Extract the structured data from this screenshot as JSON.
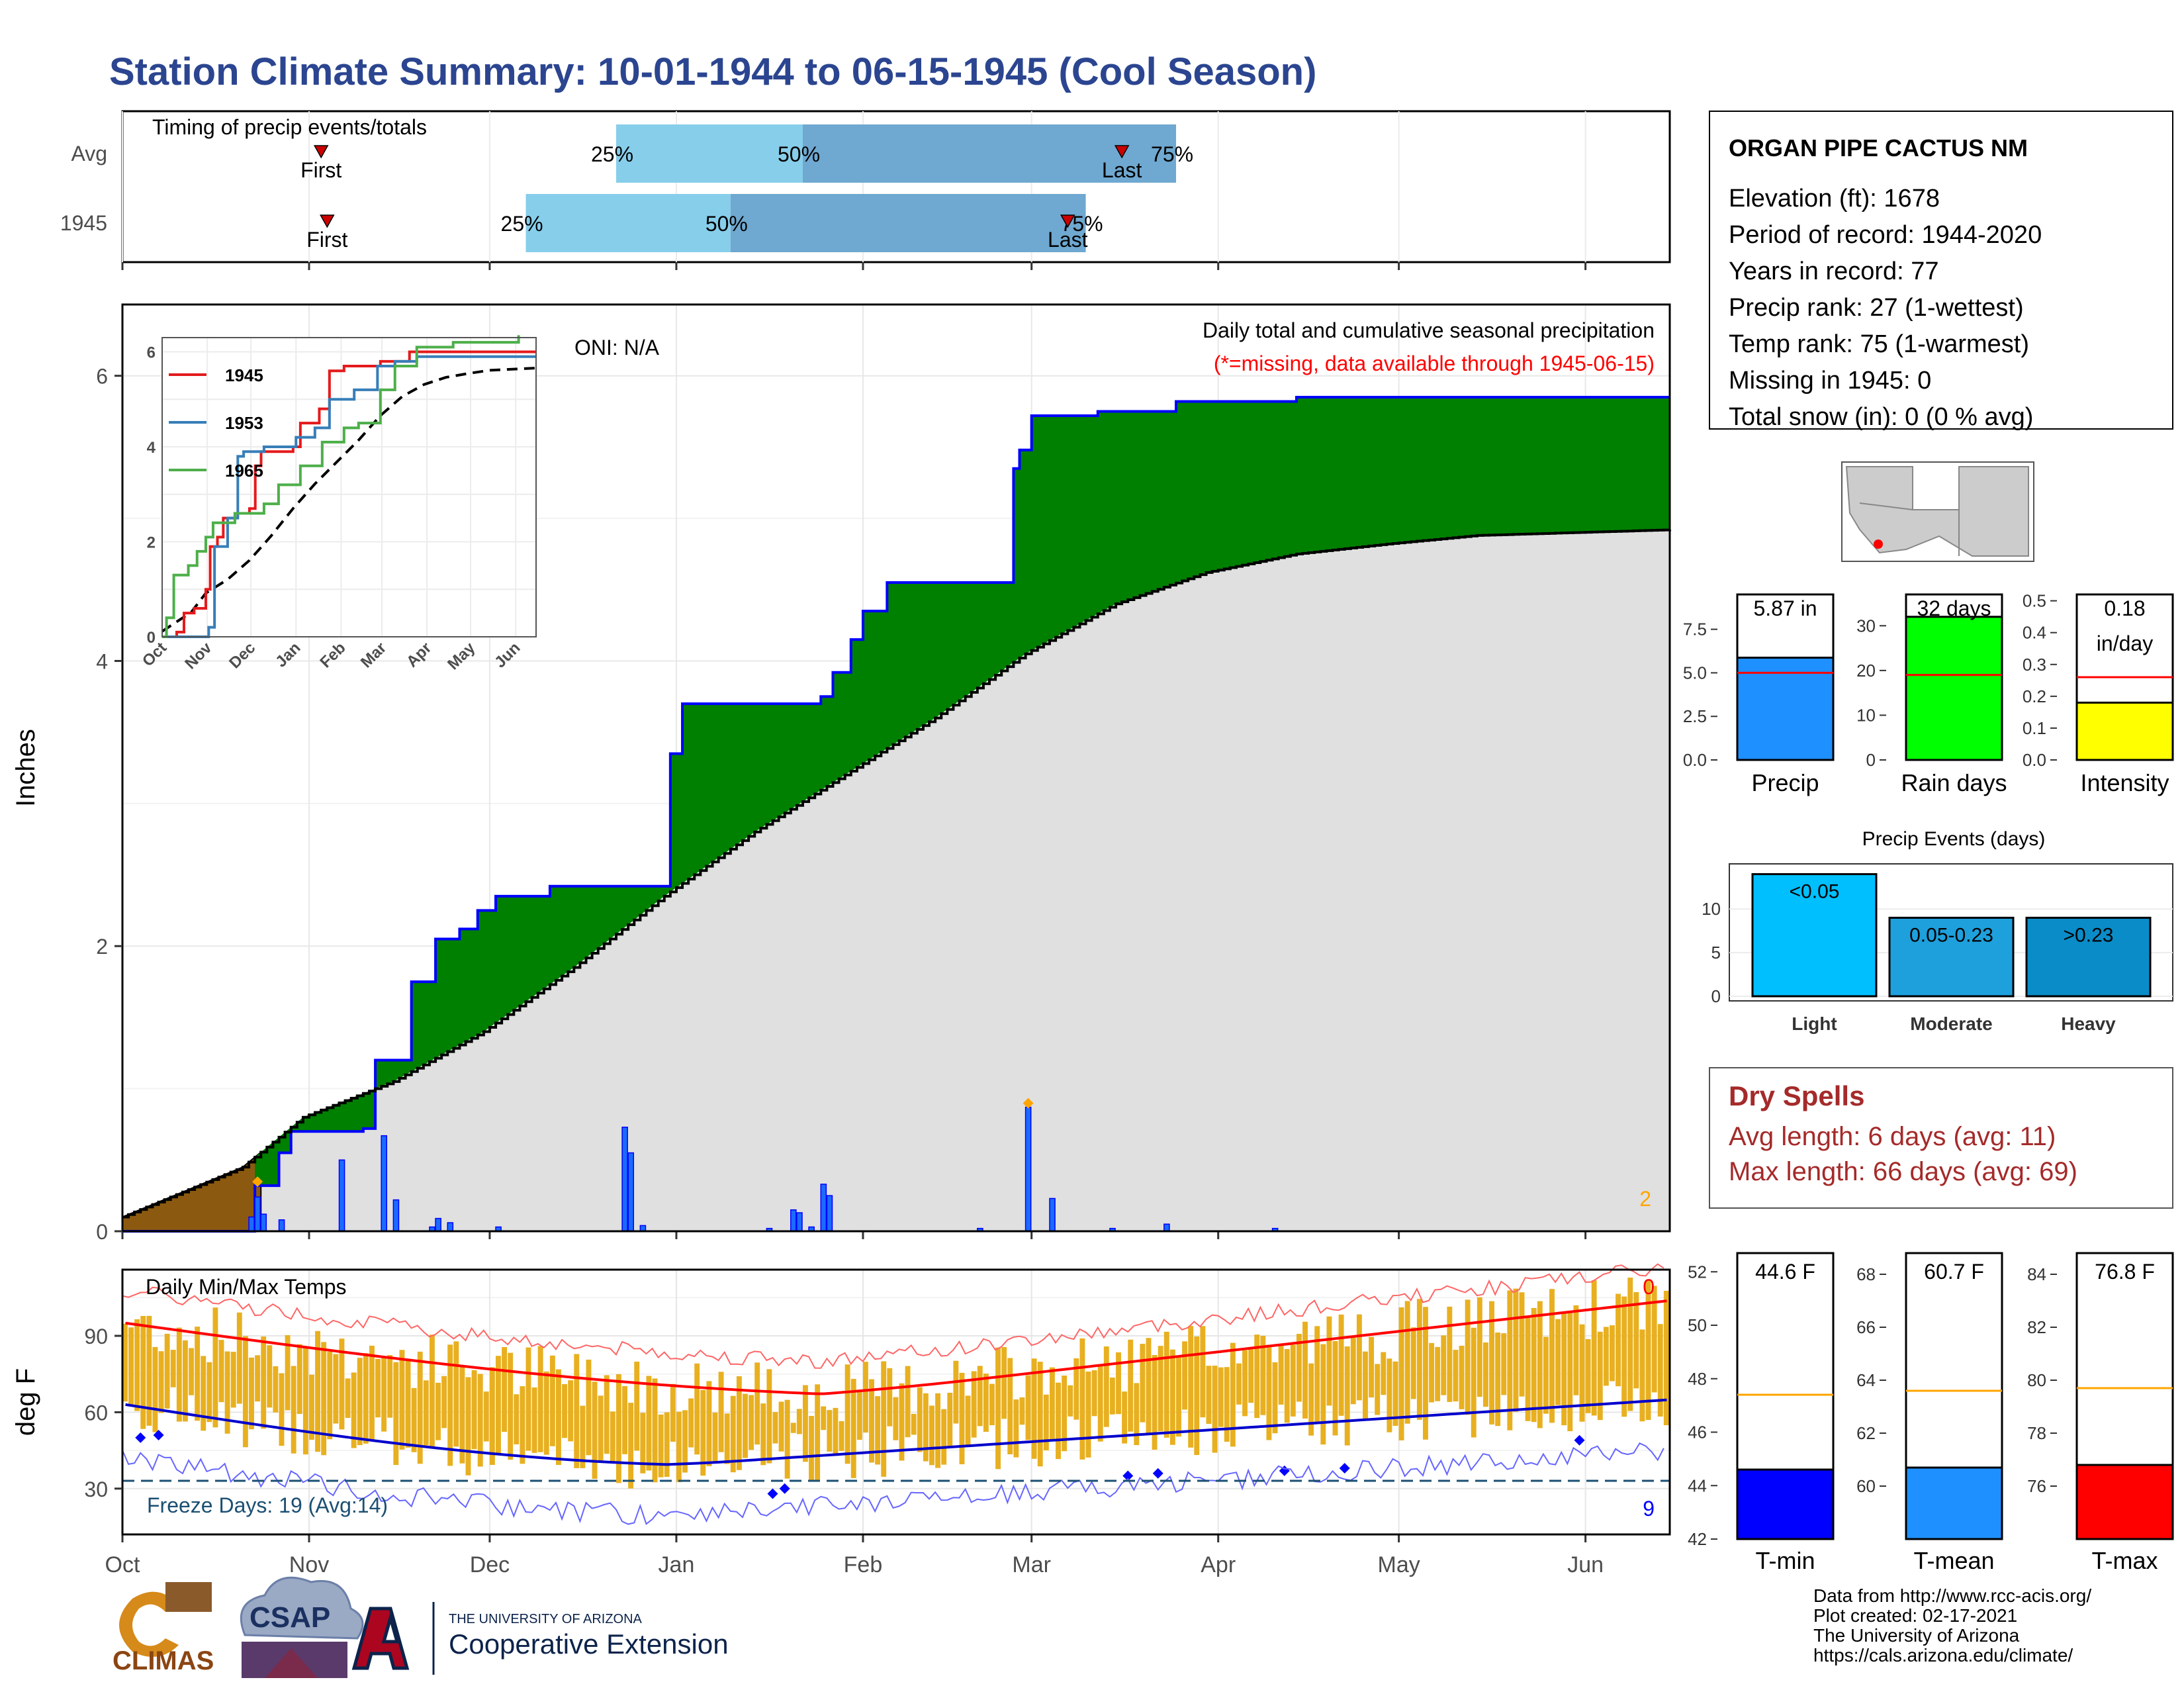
{
  "title": "Station Climate Summary: 10-01-1944 to 06-15-1945 (Cool Season)",
  "months": [
    "Oct",
    "Nov",
    "Dec",
    "Jan",
    "Feb",
    "Mar",
    "Apr",
    "May",
    "Jun"
  ],
  "colors": {
    "title": "#2b4590",
    "precip_fill": "#008000",
    "normal_fill": "#e0e0e0",
    "prev_fill": "#8b5a10",
    "bar": "#0033ff",
    "bar_fill": "#1a6bff",
    "tmax_line": "#ff0000",
    "tmin_line": "#0000cc",
    "temp_bar": "#e8b020",
    "freeze": "#1b4f72",
    "dry": "#a52a2a"
  },
  "timing": {
    "label": "Timing of precip events/totals",
    "rows": [
      {
        "name": "Avg",
        "first": "First",
        "last": "Last",
        "first_day": 33,
        "last_day": 166,
        "q25_day": 82,
        "q50_day": 113,
        "q75_day": 175,
        "q25": "25%",
        "q50": "50%",
        "q75": "75%"
      },
      {
        "name": "1945",
        "first": "First",
        "last": "Last",
        "first_day": 34,
        "last_day": 157,
        "q25_day": 67,
        "q50_day": 101,
        "q75_day": 160,
        "q25": "25%",
        "q50": "50%",
        "q75": "75%"
      }
    ]
  },
  "station": {
    "name": "ORGAN PIPE CACTUS NM",
    "lines": [
      "Elevation (ft): 1678",
      "Period of record: 1944-2020",
      "Years in record: 77",
      "Precip rank: 27 (1-wettest)",
      "Temp rank: 75 (1-warmest)",
      "Missing in 1945: 0",
      "Total snow (in): 0 (0 % avg)"
    ]
  },
  "precip_panel": {
    "ylabel": "Inches",
    "oni": "ONI: N/A",
    "caption": "Daily total and cumulative seasonal precipitation",
    "missing_note": "(*=missing, data available through 1945-06-15)",
    "missing_count": "2",
    "yticks": [
      "0",
      "2",
      "4",
      "6"
    ]
  },
  "inset": {
    "legend": [
      "1945",
      "1953",
      "1965"
    ],
    "series_colors": [
      "#e41a1c",
      "#377eb8",
      "#4daf4a"
    ],
    "yticks": [
      "0",
      "2",
      "4",
      "6"
    ],
    "months": [
      "Oct",
      "Nov",
      "Dec",
      "Jan",
      "Feb",
      "Mar",
      "Apr",
      "May",
      "Jun"
    ]
  },
  "temp_panel": {
    "ylabel": "deg F",
    "label": "Daily Min/Max Temps",
    "freeze": "Freeze Days: 19 (Avg:14)",
    "max_missing": "0",
    "min_missing": "9",
    "yticks": [
      "30",
      "60",
      "90"
    ]
  },
  "summary_bars": {
    "precip": {
      "label": "Precip",
      "value_text": "5.87 in",
      "value": 5.87,
      "avg": 5.0,
      "yticks": [
        "0.0",
        "2.5",
        "5.0",
        "7.5"
      ],
      "ymax": 9.5,
      "color": "#1e90ff"
    },
    "raindays": {
      "label": "Rain days",
      "value_text": "32 days",
      "value": 32,
      "avg": 19,
      "yticks": [
        "0",
        "10",
        "20",
        "30"
      ],
      "ymax": 37,
      "color": "#00ff00"
    },
    "intensity": {
      "label": "Intensity",
      "value_text": "0.18",
      "value_text2": "in/day",
      "value": 0.18,
      "avg": 0.26,
      "yticks": [
        "0.0",
        "0.1",
        "0.2",
        "0.3",
        "0.4",
        "0.5"
      ],
      "ymax": 0.52,
      "color": "#ffff00"
    }
  },
  "events": {
    "title": "Precip Events (days)",
    "bars": [
      {
        "cat": "Light",
        "label": "<0.05",
        "value": 14,
        "color": "#00bfff"
      },
      {
        "cat": "Moderate",
        "label": "0.05-0.23",
        "value": 9,
        "color": "#1ea0dc"
      },
      {
        "cat": "Heavy",
        "label": ">0.23",
        "value": 9,
        "color": "#0a8cc8"
      }
    ],
    "yticks": [
      "0",
      "5",
      "10"
    ]
  },
  "dry": {
    "title": "Dry Spells",
    "line1": "Avg length: 6 days (avg: 11)",
    "line2": "Max length: 66 days (avg: 69)"
  },
  "temp_bars": {
    "tmin": {
      "label": "T-min",
      "value_text": "44.6 F",
      "value": 44.6,
      "avg": 47.4,
      "yticks": [
        "42",
        "44",
        "46",
        "48",
        "50",
        "52"
      ],
      "ymin": 42,
      "ymax": 52.7,
      "color": "#0000ff"
    },
    "tmean": {
      "label": "T-mean",
      "value_text": "60.7 F",
      "value": 60.7,
      "avg": 63.6,
      "yticks": [
        "60",
        "62",
        "64",
        "66",
        "68"
      ],
      "ymin": 58,
      "ymax": 68.8,
      "color": "#1e90ff"
    },
    "tmax": {
      "label": "T-max",
      "value_text": "76.8 F",
      "value": 76.8,
      "avg": 79.7,
      "yticks": [
        "76",
        "78",
        "80",
        "82",
        "84"
      ],
      "ymin": 74,
      "ymax": 84.8,
      "color": "#ff0000"
    }
  },
  "footer": {
    "lines": [
      "Data from http://www.rcc-acis.org/",
      "Plot created: 02-17-2021",
      "The University of Arizona",
      "https://cals.arizona.edu/climate/"
    ],
    "climas": "CLIMAS",
    "csap": "CSAP",
    "ua_small": "THE UNIVERSITY OF ARIZONA",
    "ua_big": "Cooperative Extension"
  },
  "chart_data": {
    "type": "area",
    "title": "Daily total and cumulative seasonal precipitation",
    "ylabel": "Inches",
    "ylim": [
      0,
      6.4
    ],
    "cumulative_1945": [
      [
        0,
        0
      ],
      [
        21,
        0
      ],
      [
        22,
        0.32
      ],
      [
        26,
        0.55
      ],
      [
        28,
        0.7
      ],
      [
        38,
        0.7
      ],
      [
        40,
        0.72
      ],
      [
        42,
        1.2
      ],
      [
        46,
        1.2
      ],
      [
        48,
        1.75
      ],
      [
        52,
        2.05
      ],
      [
        56,
        2.12
      ],
      [
        59,
        2.25
      ],
      [
        62,
        2.35
      ],
      [
        71,
        2.42
      ],
      [
        89,
        2.42
      ],
      [
        91,
        3.35
      ],
      [
        93,
        3.7
      ],
      [
        108,
        3.7
      ],
      [
        116,
        3.75
      ],
      [
        118,
        3.92
      ],
      [
        121,
        4.15
      ],
      [
        123,
        4.35
      ],
      [
        127,
        4.55
      ],
      [
        146,
        4.55
      ],
      [
        148,
        5.35
      ],
      [
        149,
        5.48
      ],
      [
        151,
        5.72
      ],
      [
        162,
        5.75
      ],
      [
        175,
        5.82
      ],
      [
        195,
        5.85
      ],
      [
        257,
        5.85
      ]
    ],
    "normal_cumulative": [
      [
        0,
        0.1
      ],
      [
        20,
        0.45
      ],
      [
        30,
        0.8
      ],
      [
        45,
        1.05
      ],
      [
        60,
        1.4
      ],
      [
        75,
        1.85
      ],
      [
        90,
        2.35
      ],
      [
        105,
        2.8
      ],
      [
        120,
        3.2
      ],
      [
        135,
        3.6
      ],
      [
        150,
        4.05
      ],
      [
        165,
        4.4
      ],
      [
        180,
        4.62
      ],
      [
        195,
        4.75
      ],
      [
        210,
        4.82
      ],
      [
        225,
        4.88
      ],
      [
        257,
        4.92
      ]
    ],
    "daily_precip": [
      [
        21,
        0.1
      ],
      [
        22,
        0.24
      ],
      [
        23,
        0.12
      ],
      [
        26,
        0.08
      ],
      [
        36,
        0.5
      ],
      [
        43,
        0.67
      ],
      [
        45,
        0.22
      ],
      [
        51,
        0.03
      ],
      [
        52,
        0.09
      ],
      [
        54,
        0.06
      ],
      [
        62,
        0.03
      ],
      [
        83,
        0.73
      ],
      [
        84,
        0.55
      ],
      [
        86,
        0.04
      ],
      [
        107,
        0.02
      ],
      [
        111,
        0.15
      ],
      [
        112,
        0.13
      ],
      [
        114,
        0.03
      ],
      [
        116,
        0.33
      ],
      [
        117,
        0.25
      ],
      [
        142,
        0.02
      ],
      [
        150,
        0.87
      ],
      [
        154,
        0.23
      ],
      [
        164,
        0.02
      ],
      [
        173,
        0.05
      ],
      [
        191,
        0.02
      ]
    ],
    "temps": {
      "tmax_avg_range": [
        95,
        66,
        104
      ],
      "tmin_avg_range": [
        63,
        39,
        65
      ]
    }
  }
}
